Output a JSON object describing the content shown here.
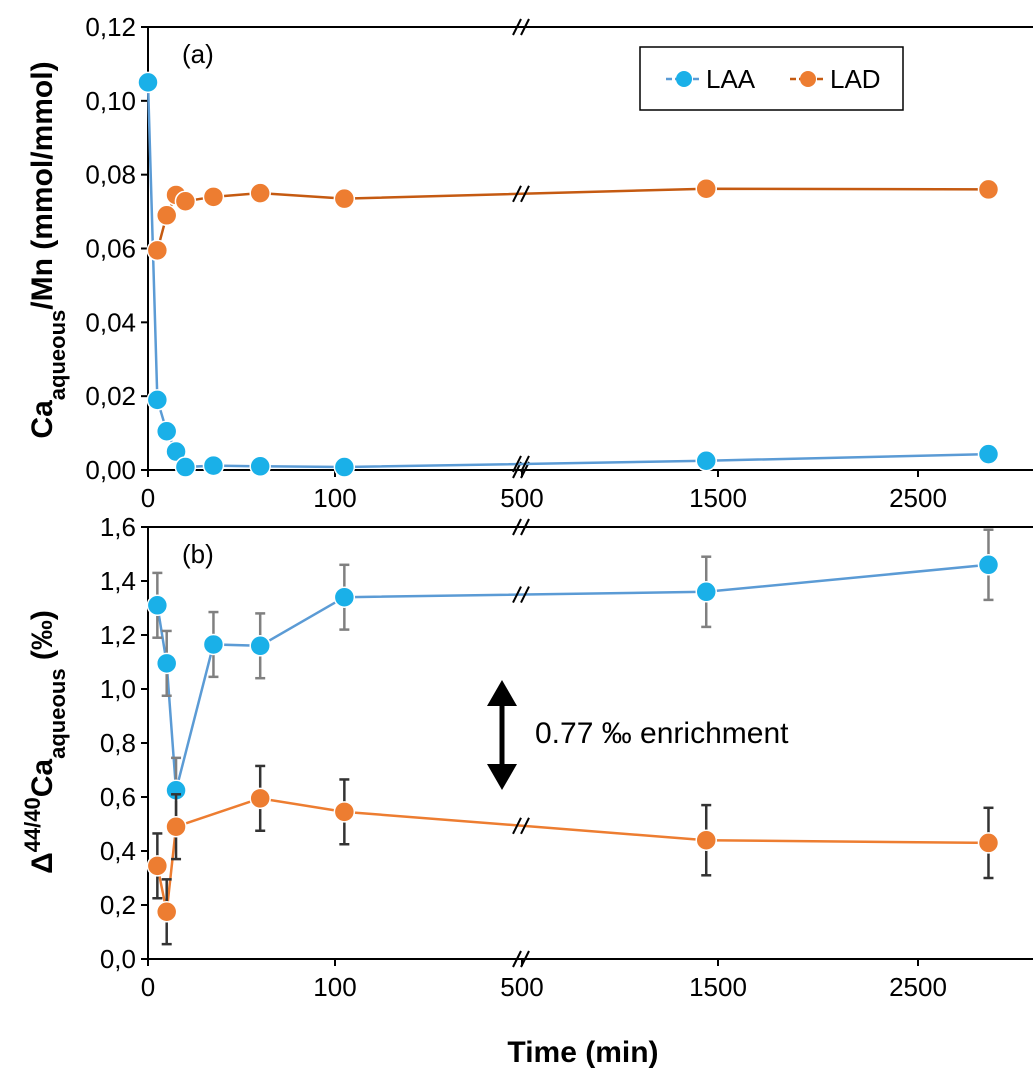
{
  "chart_data": [
    {
      "type": "line",
      "panel_label": "(a)",
      "ylabel": "Ca<sub>aqueous</sub>/Mn (mmol/mmol)",
      "ylabel_parts": {
        "base": "Ca",
        "sub": "aqueous",
        "rest": "/Mn (mmol/mmol)"
      },
      "ylim": [
        0,
        0.12
      ],
      "yticks": [
        "0,00",
        "0,02",
        "0,04",
        "0,06",
        "0,08",
        "0,10",
        "0,12"
      ],
      "ytick_values": [
        0,
        0.02,
        0.04,
        0.06,
        0.08,
        0.1,
        0.12
      ],
      "xticks": [
        "0",
        "100",
        "500",
        "1500",
        "2500"
      ],
      "xtick_values": [
        0,
        100,
        500,
        1500,
        2500
      ],
      "x_axis_break": true,
      "legend_position": "top-right",
      "series": [
        {
          "name": "LAA",
          "color": "#1ab0e8",
          "line_color": "#5b9bd5",
          "x": [
            0,
            5,
            10,
            15,
            20,
            35,
            60,
            120,
            1440,
            2880
          ],
          "y": [
            0.105,
            0.019,
            0.0105,
            0.005,
            0.0008,
            0.0012,
            0.001,
            0.0008,
            0.0025,
            0.0043
          ]
        },
        {
          "name": "LAD",
          "color": "#ed7d31",
          "line_color": "#c55a11",
          "x": [
            5,
            10,
            15,
            20,
            35,
            60,
            120,
            1440,
            2880
          ],
          "y": [
            0.0595,
            0.069,
            0.0745,
            0.0728,
            0.074,
            0.075,
            0.0735,
            0.0762,
            0.076
          ]
        }
      ]
    },
    {
      "type": "line",
      "panel_label": "(b)",
      "ylabel_parts": {
        "delta": "Δ",
        "sup": "44/40",
        "base": "Ca",
        "sub": "aqueous",
        "rest": " (‰)"
      },
      "ylim": [
        0,
        1.6
      ],
      "yticks": [
        "0,0",
        "0,2",
        "0,4",
        "0,6",
        "0,8",
        "1,0",
        "1,2",
        "1,4",
        "1,6"
      ],
      "ytick_values": [
        0,
        0.2,
        0.4,
        0.6,
        0.8,
        1.0,
        1.2,
        1.4,
        1.6
      ],
      "xticks": [
        "0",
        "100",
        "500",
        "1500",
        "2500"
      ],
      "xtick_values": [
        0,
        100,
        500,
        1500,
        2500
      ],
      "xlabel": "Time (min)",
      "x_axis_break": true,
      "annotation": "0.77 ‰ enrichment",
      "series": [
        {
          "name": "LAA",
          "color": "#1ab0e8",
          "line_color": "#5b9bd5",
          "error_color": "#808080",
          "x": [
            5,
            10,
            15,
            35,
            60,
            120,
            1440,
            2880
          ],
          "y": [
            1.31,
            1.095,
            0.625,
            1.165,
            1.16,
            1.34,
            1.36,
            1.46
          ],
          "err": [
            0.12,
            0.12,
            0.12,
            0.12,
            0.12,
            0.12,
            0.13,
            0.13
          ]
        },
        {
          "name": "LAD",
          "color": "#ed7d31",
          "line_color": "#ed7d31",
          "error_color": "#333333",
          "x": [
            5,
            10,
            15,
            60,
            120,
            1440,
            2880
          ],
          "y": [
            0.345,
            0.175,
            0.49,
            0.595,
            0.545,
            0.44,
            0.43
          ],
          "err": [
            0.12,
            0.12,
            0.12,
            0.12,
            0.12,
            0.13,
            0.13
          ]
        }
      ]
    }
  ]
}
